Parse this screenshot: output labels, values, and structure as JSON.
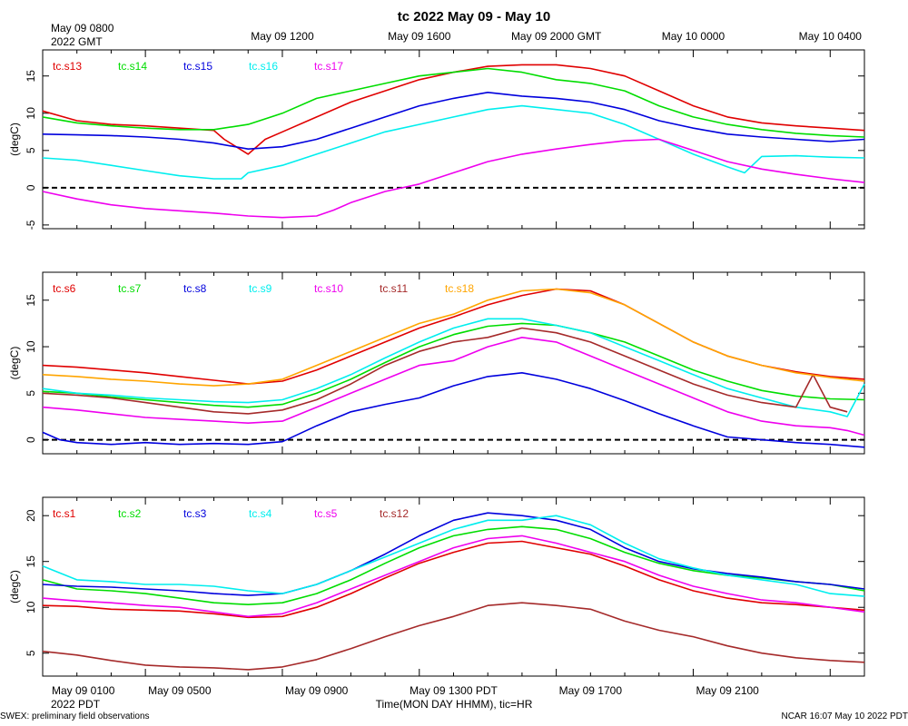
{
  "title": "tc 2022 May 09 - May 10",
  "top_axis": {
    "first_label_line1": "May 09 0800",
    "first_label_line2": "2022 GMT",
    "labels": [
      "May 09 1200",
      "May 09 1600",
      "May 09 2000 GMT",
      "May 10 0000",
      "May 10 0400"
    ]
  },
  "bottom_axis": {
    "labels": [
      "May 09 0100",
      "May 09 0500",
      "May 09 0900",
      "May 09 1300 PDT",
      "May 09 1700",
      "May 09 2100"
    ],
    "year_label": "2022 PDT",
    "axis_title": "Time(MON DAY HHMM), tic=HR"
  },
  "footer": {
    "left": "SWEX: preliminary field observations",
    "right": "NCAR 16:07 May 10 2022 PDT"
  },
  "colors": {
    "red": "#e00000",
    "green": "#00dd00",
    "blue": "#0000dd",
    "cyan": "#00eeee",
    "magenta": "#ee00ee",
    "brown": "#a52a2a",
    "orange": "#ffa500"
  },
  "chart_data": [
    {
      "type": "line",
      "ylabel": "(degC)",
      "ylim": [
        -5.5,
        18.5
      ],
      "yticks": [
        -5,
        0,
        5,
        10,
        15
      ],
      "xlim_hours_pdt": [
        0,
        24
      ],
      "zero_line": true,
      "series": [
        {
          "name": "tc.s13",
          "color": "#e00000",
          "x": [
            0,
            1,
            2,
            3,
            4,
            5,
            5.3,
            6,
            6.5,
            7,
            8,
            9,
            10,
            11,
            12,
            13,
            14,
            15,
            16,
            17,
            18,
            19,
            20,
            21,
            22,
            23,
            24
          ],
          "y": [
            10.3,
            9,
            8.5,
            8.3,
            8,
            7.7,
            6.5,
            4.5,
            6.5,
            7.5,
            9.5,
            11.5,
            13,
            14.5,
            15.5,
            16.3,
            16.5,
            16.5,
            16,
            15,
            13,
            11,
            9.5,
            8.7,
            8.3,
            8,
            7.7
          ]
        },
        {
          "name": "tc.s14",
          "color": "#00dd00",
          "x": [
            0,
            1,
            2,
            3,
            4,
            5,
            6,
            7,
            8,
            9,
            10,
            11,
            12,
            13,
            14,
            15,
            16,
            17,
            18,
            19,
            20,
            21,
            22,
            23,
            24
          ],
          "y": [
            9.5,
            8.7,
            8.3,
            8,
            7.8,
            7.8,
            8.5,
            10,
            12,
            13,
            14,
            15,
            15.5,
            16,
            15.5,
            14.5,
            14,
            13,
            11,
            9.5,
            8.5,
            7.8,
            7.3,
            7,
            6.8
          ]
        },
        {
          "name": "tc.s15",
          "color": "#0000dd",
          "x": [
            0,
            1,
            2,
            3,
            4,
            5,
            6,
            7,
            8,
            9,
            10,
            11,
            12,
            13,
            14,
            15,
            16,
            17,
            18,
            19,
            20,
            21,
            22,
            23,
            24
          ],
          "y": [
            7.2,
            7.1,
            7,
            6.8,
            6.5,
            6,
            5.2,
            5.5,
            6.5,
            8,
            9.5,
            11,
            12,
            12.8,
            12.3,
            12,
            11.5,
            10.5,
            9,
            8,
            7.2,
            6.8,
            6.5,
            6.2,
            6.5
          ]
        },
        {
          "name": "tc.s16",
          "color": "#00eeee",
          "x": [
            0,
            1,
            2,
            3,
            4,
            5,
            5.8,
            6,
            7,
            8,
            9,
            10,
            11,
            12,
            13,
            14,
            15,
            16,
            17,
            18,
            19,
            20,
            20.5,
            21,
            22,
            23,
            24
          ],
          "y": [
            4,
            3.7,
            3,
            2.3,
            1.6,
            1.2,
            1.2,
            2,
            3,
            4.5,
            6,
            7.5,
            8.5,
            9.5,
            10.5,
            11,
            10.5,
            10,
            8.5,
            6.5,
            4.5,
            2.8,
            2,
            4.2,
            4.3,
            4.1,
            4
          ]
        },
        {
          "name": "tc.s17",
          "color": "#ee00ee",
          "x": [
            0,
            1,
            2,
            3,
            4,
            5,
            6,
            7,
            8,
            8.5,
            9,
            10,
            11,
            12,
            13,
            14,
            15,
            16,
            17,
            18,
            19,
            20,
            21,
            22,
            23,
            24
          ],
          "y": [
            -0.5,
            -1.5,
            -2.3,
            -2.8,
            -3.1,
            -3.4,
            -3.8,
            -4,
            -3.8,
            -3,
            -2,
            -0.5,
            0.5,
            2,
            3.5,
            4.5,
            5.2,
            5.8,
            6.3,
            6.5,
            5,
            3.5,
            2.5,
            1.8,
            1.2,
            0.7
          ]
        }
      ]
    },
    {
      "type": "line",
      "ylabel": "(degC)",
      "ylim": [
        -1.5,
        18
      ],
      "yticks": [
        0,
        5,
        10,
        15
      ],
      "xlim_hours_pdt": [
        0,
        24
      ],
      "zero_line": true,
      "series": [
        {
          "name": "tc.s6",
          "color": "#e00000",
          "x": [
            0,
            1,
            2,
            3,
            4,
            5,
            6,
            7,
            8,
            9,
            10,
            11,
            12,
            13,
            14,
            15,
            16,
            17,
            18,
            19,
            20,
            21,
            22,
            23,
            24
          ],
          "y": [
            8,
            7.8,
            7.5,
            7.2,
            6.8,
            6.4,
            6,
            6.3,
            7.5,
            9,
            10.5,
            12,
            13.2,
            14.5,
            15.5,
            16.2,
            16,
            14.5,
            12.5,
            10.5,
            9,
            8,
            7.3,
            6.8,
            6.5
          ]
        },
        {
          "name": "tc.s7",
          "color": "#00dd00",
          "x": [
            0,
            1,
            2,
            3,
            4,
            5,
            6,
            7,
            8,
            9,
            10,
            11,
            12,
            13,
            14,
            15,
            16,
            17,
            18,
            19,
            20,
            21,
            22,
            23,
            24
          ],
          "y": [
            5.2,
            5,
            4.6,
            4.3,
            4,
            3.7,
            3.5,
            3.8,
            5,
            6.5,
            8.3,
            10,
            11.3,
            12.2,
            12.5,
            12.3,
            11.5,
            10.5,
            9,
            7.5,
            6.3,
            5.3,
            4.7,
            4.4,
            4.3
          ]
        },
        {
          "name": "tc.s8",
          "color": "#0000dd",
          "x": [
            0,
            0.5,
            1,
            2,
            3,
            4,
            5,
            6,
            7,
            8,
            9,
            10,
            11,
            12,
            13,
            14,
            15,
            16,
            17,
            18,
            19,
            20,
            21,
            22,
            23,
            24
          ],
          "y": [
            0.8,
            0,
            -0.3,
            -0.5,
            -0.3,
            -0.5,
            -0.4,
            -0.5,
            -0.2,
            1.5,
            3,
            3.8,
            4.5,
            5.8,
            6.8,
            7.2,
            6.5,
            5.5,
            4.2,
            2.8,
            1.5,
            0.3,
            0,
            -0.3,
            -0.5,
            -0.8
          ]
        },
        {
          "name": "tc.s9",
          "color": "#00eeee",
          "x": [
            0,
            1,
            2,
            3,
            4,
            5,
            6,
            7,
            8,
            9,
            10,
            11,
            12,
            13,
            14,
            15,
            16,
            17,
            18,
            19,
            20,
            21,
            22,
            23,
            23.5,
            24
          ],
          "y": [
            5.5,
            5,
            4.8,
            4.5,
            4.3,
            4.1,
            4,
            4.3,
            5.5,
            7,
            8.8,
            10.5,
            12,
            13,
            13,
            12.3,
            11.5,
            10,
            8.5,
            7,
            5.5,
            4.5,
            3.5,
            3,
            2.5,
            6
          ]
        },
        {
          "name": "tc.s10",
          "color": "#ee00ee",
          "x": [
            0,
            1,
            2,
            3,
            4,
            5,
            6,
            7,
            8,
            9,
            10,
            11,
            12,
            13,
            14,
            15,
            16,
            17,
            18,
            19,
            20,
            21,
            22,
            23,
            23.5,
            24
          ],
          "y": [
            3.5,
            3.2,
            2.8,
            2.4,
            2.2,
            2,
            1.8,
            2,
            3.5,
            5,
            6.5,
            8,
            8.5,
            10,
            11,
            10.5,
            9,
            7.5,
            6,
            4.5,
            3,
            2,
            1.5,
            1.3,
            1,
            0.5
          ]
        },
        {
          "name": "tc.s11",
          "color": "#a52a2a",
          "x": [
            0,
            1,
            2,
            3,
            4,
            5,
            6,
            7,
            8,
            9,
            10,
            11,
            12,
            13,
            14,
            15,
            16,
            17,
            18,
            19,
            20,
            21,
            22,
            22.5,
            23,
            23.5
          ],
          "y": [
            5,
            4.8,
            4.5,
            4,
            3.5,
            3,
            2.8,
            3.2,
            4.3,
            6,
            8,
            9.5,
            10.5,
            11,
            12,
            11.5,
            10.5,
            9,
            7.5,
            6,
            4.8,
            4,
            3.5,
            7,
            3.5,
            3
          ]
        },
        {
          "name": "tc.s18",
          "color": "#ffa500",
          "x": [
            0,
            1,
            2,
            3,
            4,
            5,
            6,
            7,
            8,
            9,
            10,
            11,
            12,
            13,
            14,
            15,
            16,
            17,
            18,
            19,
            20,
            21,
            22,
            23,
            24
          ],
          "y": [
            7,
            6.8,
            6.5,
            6.3,
            6,
            5.8,
            6,
            6.5,
            8,
            9.5,
            11,
            12.5,
            13.5,
            15,
            16,
            16.2,
            15.8,
            14.5,
            12.5,
            10.5,
            9,
            8,
            7.2,
            6.7,
            6.3
          ]
        }
      ]
    },
    {
      "type": "line",
      "ylabel": "(degC)",
      "ylim": [
        2.5,
        22
      ],
      "yticks": [
        5,
        10,
        15,
        20
      ],
      "xlim_hours_pdt": [
        0,
        24
      ],
      "zero_line": false,
      "series": [
        {
          "name": "tc.s1",
          "color": "#e00000",
          "x": [
            0,
            1,
            2,
            3,
            4,
            5,
            6,
            7,
            8,
            9,
            10,
            11,
            12,
            13,
            14,
            15,
            16,
            17,
            18,
            19,
            20,
            21,
            22,
            23,
            24
          ],
          "y": [
            10.2,
            10.1,
            9.8,
            9.7,
            9.6,
            9.3,
            8.9,
            9,
            10,
            11.5,
            13.2,
            14.8,
            16,
            17,
            17.2,
            16.5,
            15.8,
            14.5,
            13,
            11.8,
            11,
            10.5,
            10.3,
            10,
            9.7
          ]
        },
        {
          "name": "tc.s2",
          "color": "#00dd00",
          "x": [
            0,
            1,
            2,
            3,
            4,
            5,
            6,
            7,
            8,
            9,
            10,
            11,
            12,
            13,
            14,
            15,
            16,
            17,
            18,
            19,
            20,
            21,
            22,
            23,
            24
          ],
          "y": [
            13,
            12,
            11.8,
            11.5,
            11,
            10.5,
            10.3,
            10.5,
            11.5,
            13,
            14.8,
            16.5,
            17.8,
            18.5,
            18.8,
            18.5,
            17.5,
            16,
            14.8,
            14,
            13.5,
            13.2,
            12.8,
            12.5,
            11.8
          ]
        },
        {
          "name": "tc.s3",
          "color": "#0000dd",
          "x": [
            0,
            1,
            2,
            3,
            4,
            5,
            6,
            7,
            8,
            9,
            10,
            11,
            12,
            13,
            14,
            15,
            16,
            17,
            18,
            19,
            20,
            21,
            22,
            23,
            24
          ],
          "y": [
            12.5,
            12.3,
            12.2,
            12,
            11.8,
            11.5,
            11.3,
            11.5,
            12.5,
            14,
            15.8,
            17.8,
            19.5,
            20.3,
            20,
            19.5,
            18.5,
            16.5,
            15,
            14.2,
            13.7,
            13.3,
            12.8,
            12.5,
            12
          ]
        },
        {
          "name": "tc.s4",
          "color": "#00eeee",
          "x": [
            0,
            1,
            2,
            3,
            4,
            5,
            6,
            7,
            8,
            9,
            10,
            11,
            12,
            13,
            14,
            15,
            16,
            17,
            18,
            19,
            20,
            21,
            22,
            23,
            24
          ],
          "y": [
            14.5,
            13,
            12.8,
            12.5,
            12.5,
            12.3,
            11.8,
            11.5,
            12.5,
            14,
            15.5,
            17,
            18.5,
            19.5,
            19.5,
            20,
            19,
            17,
            15.3,
            14.3,
            13.5,
            13,
            12.5,
            11.5,
            11.2
          ]
        },
        {
          "name": "tc.s5",
          "color": "#ee00ee",
          "x": [
            0,
            1,
            2,
            3,
            4,
            5,
            6,
            7,
            8,
            9,
            10,
            11,
            12,
            13,
            14,
            15,
            16,
            17,
            18,
            19,
            20,
            21,
            22,
            23,
            24
          ],
          "y": [
            11,
            10.7,
            10.5,
            10.2,
            10,
            9.5,
            9,
            9.3,
            10.5,
            12,
            13.5,
            15,
            16.5,
            17.5,
            17.8,
            17,
            16,
            15,
            13.5,
            12.3,
            11.5,
            10.8,
            10.5,
            10,
            9.5
          ]
        },
        {
          "name": "tc.s12",
          "color": "#a52a2a",
          "x": [
            0,
            1,
            2,
            3,
            4,
            5,
            6,
            7,
            8,
            9,
            10,
            11,
            12,
            13,
            14,
            15,
            16,
            17,
            18,
            19,
            20,
            21,
            22,
            23,
            24
          ],
          "y": [
            5.2,
            4.8,
            4.2,
            3.7,
            3.5,
            3.4,
            3.2,
            3.5,
            4.3,
            5.5,
            6.8,
            8,
            9,
            10.2,
            10.5,
            10.2,
            9.8,
            8.5,
            7.5,
            6.8,
            5.8,
            5,
            4.5,
            4.2,
            4
          ]
        }
      ]
    }
  ]
}
